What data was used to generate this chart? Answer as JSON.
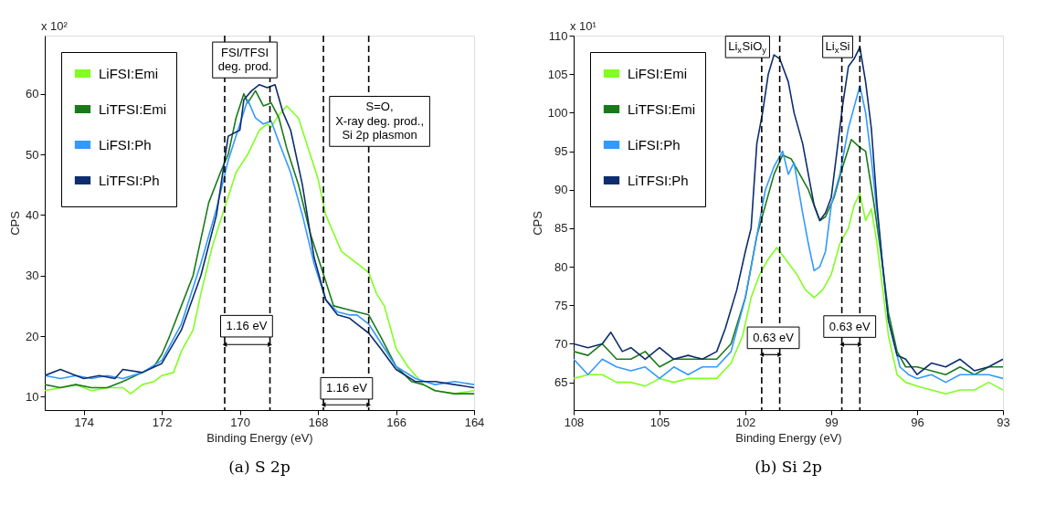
{
  "chart_data": [
    {
      "type": "line",
      "title": "(a) S 2p",
      "xlabel": "Binding Energy (eV)",
      "ylabel": "CPS",
      "xlim": [
        175,
        164
      ],
      "xticks": [
        174,
        172,
        170,
        168,
        166,
        164
      ],
      "ylim": [
        7.8,
        69.6
      ],
      "yticks": [
        10,
        20,
        30,
        40,
        50,
        60
      ],
      "grid": false,
      "legend": "top left",
      "marker": "none",
      "line_style": "solid",
      "series": [
        {
          "name": "LiFSI:Emi",
          "color": "#80ff20",
          "x": [
            175,
            174.6,
            174.2,
            173.8,
            173.4,
            173,
            172.8,
            172.5,
            172.2,
            172,
            171.7,
            171.5,
            171.2,
            171,
            170.7,
            170.4,
            170.1,
            169.8,
            169.5,
            169.3,
            169.2,
            169,
            168.8,
            168.5,
            168.3,
            168,
            167.8,
            167.6,
            167.4,
            167.2,
            167,
            166.7,
            166.5,
            166.3,
            166,
            165.7,
            165.3,
            165,
            164.5,
            164
          ],
          "values": [
            11,
            11.5,
            12,
            11,
            11.5,
            11.5,
            10.5,
            12,
            12.5,
            13.5,
            14,
            17.5,
            21,
            27,
            35,
            41,
            47,
            50,
            54,
            55,
            54.5,
            56.5,
            58,
            56,
            52,
            46,
            40,
            37,
            34,
            33,
            32,
            30.5,
            27,
            25,
            18,
            15,
            12,
            11,
            10.5,
            11
          ]
        },
        {
          "name": "LiTFSI:Emi",
          "color": "#1a7a1a",
          "x": [
            175,
            174.6,
            174.2,
            173.8,
            173.4,
            173,
            172.5,
            172.2,
            172,
            171.8,
            171.5,
            171.2,
            171,
            170.8,
            170.5,
            170.3,
            170.1,
            169.9,
            169.8,
            169.6,
            169.4,
            169.2,
            169,
            168.8,
            168.5,
            168.2,
            168,
            167.8,
            167.6,
            167.3,
            167,
            166.7,
            166.4,
            166,
            165.6,
            165.3,
            165,
            164.5,
            164
          ],
          "values": [
            12,
            11.5,
            12,
            11.5,
            11.5,
            12.5,
            14,
            15,
            17,
            20,
            25,
            30,
            36,
            42,
            47,
            50,
            56,
            60,
            58.5,
            60.5,
            58,
            58.5,
            56,
            51,
            45,
            37,
            33,
            29,
            25,
            24.5,
            24,
            23.5,
            20,
            15,
            12.5,
            12,
            11,
            10.5,
            10.5
          ]
        },
        {
          "name": "LiFSI:Ph",
          "color": "#3399ff",
          "x": [
            175,
            174.6,
            174.2,
            173.8,
            173.4,
            173,
            172.5,
            172,
            171.5,
            171,
            170.6,
            170.3,
            170,
            169.8,
            169.6,
            169.4,
            169.2,
            169,
            168.7,
            168.4,
            168.1,
            167.8,
            167.5,
            167.2,
            167,
            166.7,
            166.4,
            166,
            165.5,
            165,
            164.5,
            164
          ],
          "values": [
            13.5,
            13,
            13.5,
            13,
            13.5,
            13,
            14,
            16,
            22,
            32,
            41,
            49,
            55,
            59,
            56,
            55,
            55.5,
            52,
            47,
            40,
            32,
            26,
            24,
            23.5,
            23.5,
            22,
            19,
            15,
            13,
            12,
            12.5,
            12
          ]
        },
        {
          "name": "LiTFSI:Ph",
          "color": "#0d2d6e",
          "x": [
            175,
            174.6,
            174.2,
            174,
            173.6,
            173.2,
            173,
            172.5,
            172,
            171.5,
            171,
            170.6,
            170.3,
            170,
            169.9,
            169.7,
            169.5,
            169.3,
            169.1,
            168.9,
            168.7,
            168.4,
            168.1,
            167.8,
            167.5,
            167.2,
            167,
            166.7,
            166.4,
            166,
            165.5,
            165,
            164.5,
            164
          ],
          "values": [
            13.5,
            14.5,
            13.5,
            13,
            13.5,
            13,
            14.5,
            14,
            15.5,
            21,
            30,
            40,
            53,
            54,
            59,
            60.5,
            61.5,
            61,
            61.5,
            57,
            54,
            45,
            33,
            26,
            23.5,
            23,
            22,
            20.5,
            18,
            14.5,
            12.5,
            12.5,
            12,
            11.5
          ]
        }
      ],
      "ref_lines": [
        {
          "axis": "x",
          "value": 170.39,
          "color": "#000000",
          "line_style": "dashed"
        },
        {
          "axis": "x",
          "value": 169.23,
          "color": "#000000",
          "line_style": "dashed"
        },
        {
          "axis": "x",
          "value": 167.86,
          "color": "#000000",
          "line_style": "dashed"
        },
        {
          "axis": "x",
          "value": 166.7,
          "color": "#000000",
          "line_style": "dashed"
        }
      ],
      "annotations": [
        "x 10²",
        "FSI/TFSI\ndeg. prod.",
        "S=O,\nX-ray deg. prod.,\nSi 2p plasmon",
        "1.16 eV",
        "1.16 eV"
      ]
    },
    {
      "type": "line",
      "title": "(b) Si 2p",
      "xlabel": "Binding Energy (eV)",
      "ylabel": "CPS",
      "xlim": [
        108,
        93
      ],
      "xticks": [
        108,
        105,
        102,
        99,
        96,
        93
      ],
      "ylim": [
        61.4,
        110
      ],
      "yticks": [
        65,
        70,
        75,
        80,
        85,
        90,
        95,
        100,
        105,
        110
      ],
      "grid": false,
      "legend": "top left",
      "marker": "none",
      "line_style": "solid",
      "series": [
        {
          "name": "LiFSI:Emi",
          "color": "#80ff20",
          "x": [
            108,
            107.5,
            107,
            106.5,
            106,
            105.5,
            105,
            104.5,
            104,
            103.5,
            103,
            102.5,
            102.1,
            101.8,
            101.5,
            101.2,
            100.9,
            100.6,
            100.2,
            99.9,
            99.6,
            99.3,
            99,
            98.7,
            98.4,
            98.2,
            98,
            97.8,
            97.6,
            97.4,
            97.2,
            97,
            96.7,
            96.4,
            96,
            95.5,
            95,
            94.5,
            94,
            93.5,
            93
          ],
          "values": [
            65.5,
            66,
            66,
            65,
            65,
            64.5,
            65.5,
            65,
            65.5,
            65.5,
            65.5,
            67.5,
            71,
            76,
            79,
            81,
            82.5,
            81,
            79,
            77,
            76,
            77,
            79,
            83,
            85,
            88,
            89.5,
            86,
            87.5,
            83,
            77,
            71,
            66,
            65,
            64.5,
            64,
            63.5,
            64,
            64,
            65,
            64
          ]
        },
        {
          "name": "LiTFSI:Emi",
          "color": "#1a7a1a",
          "x": [
            108,
            107.5,
            107,
            106.5,
            106,
            105.5,
            105,
            104.5,
            104,
            103.5,
            103,
            102.5,
            102,
            101.6,
            101.3,
            101,
            100.7,
            100.4,
            100.1,
            99.8,
            99.6,
            99.4,
            99.2,
            98.9,
            98.6,
            98.3,
            98,
            97.8,
            97.5,
            97.2,
            97,
            96.7,
            96.4,
            96,
            95.5,
            95,
            94.5,
            94,
            93.5,
            93
          ],
          "values": [
            69,
            68.5,
            70,
            68,
            68,
            69,
            67,
            68,
            68,
            68,
            68,
            70,
            76,
            84,
            88,
            92,
            94.5,
            94,
            92,
            90,
            88,
            86,
            86.5,
            89,
            93,
            96.5,
            95.5,
            95,
            88,
            80,
            74,
            69,
            67,
            67,
            66.5,
            66,
            67,
            66,
            67,
            67
          ]
        },
        {
          "name": "LiFSI:Ph",
          "color": "#3399ff",
          "x": [
            108,
            107.5,
            107,
            106.5,
            106,
            105.5,
            105,
            104.5,
            104,
            103.5,
            103,
            102.5,
            102,
            101.6,
            101.3,
            101,
            100.7,
            100.5,
            100.3,
            100,
            99.8,
            99.6,
            99.4,
            99.2,
            99,
            98.7,
            98.4,
            98,
            97.8,
            97.6,
            97.4,
            97,
            96.6,
            96.3,
            96,
            95.5,
            95,
            94.5,
            94,
            93.5,
            93
          ],
          "values": [
            68,
            66,
            68,
            67,
            66.5,
            67,
            65.5,
            67,
            66,
            67,
            67,
            69,
            76,
            84,
            90,
            93,
            95,
            92,
            93.5,
            87,
            83,
            79.5,
            80,
            82,
            88,
            92,
            98,
            103.5,
            100,
            94,
            87,
            73,
            67,
            66,
            65.5,
            66,
            65,
            66,
            66,
            66,
            65.5
          ]
        },
        {
          "name": "LiTFSI:Ph",
          "color": "#0d2d6e",
          "x": [
            108,
            107.5,
            107,
            106.7,
            106.3,
            106,
            105.5,
            105,
            104.5,
            104,
            103.5,
            103,
            102.7,
            102.3,
            102,
            101.8,
            101.6,
            101.4,
            101.2,
            101,
            100.8,
            100.5,
            100.3,
            100,
            99.8,
            99.6,
            99.4,
            99.2,
            99,
            98.8,
            98.6,
            98.4,
            98.2,
            98,
            97.8,
            97.6,
            97.4,
            97.2,
            97,
            96.7,
            96.4,
            96,
            95.5,
            95,
            94.5,
            94,
            93.5,
            93
          ],
          "values": [
            70,
            69.5,
            70,
            71.5,
            69,
            69.5,
            68,
            69.5,
            68,
            68.5,
            68,
            69,
            72,
            77,
            82,
            85,
            96,
            100,
            105,
            107.5,
            107,
            104,
            100,
            96,
            92,
            88,
            86,
            87,
            89,
            95,
            101,
            106,
            107,
            108.5,
            104,
            98,
            88,
            80,
            73,
            68.5,
            68,
            66,
            67.5,
            67,
            68,
            66.5,
            67,
            68
          ]
        }
      ],
      "ref_lines": [
        {
          "axis": "x",
          "value": 101.43,
          "color": "#000000",
          "line_style": "dashed"
        },
        {
          "axis": "x",
          "value": 100.8,
          "color": "#000000",
          "line_style": "dashed"
        },
        {
          "axis": "x",
          "value": 98.63,
          "color": "#000000",
          "line_style": "dashed"
        },
        {
          "axis": "x",
          "value": 98.0,
          "color": "#000000",
          "line_style": "dashed"
        }
      ],
      "annotations": [
        "x 10¹",
        "Li$_{x}$SiO$_{y}$",
        "Li$_{x}$Si",
        "0.63 eV",
        "0.63 eV"
      ]
    }
  ]
}
